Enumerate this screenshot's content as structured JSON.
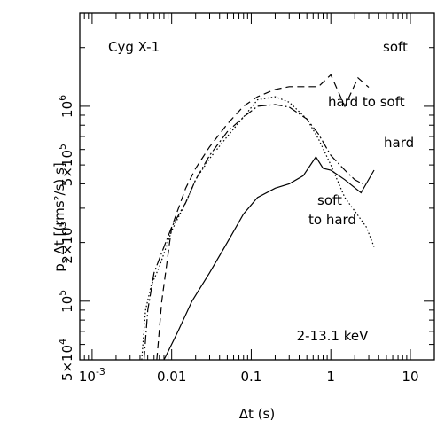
{
  "chart_data": {
    "type": "line",
    "title": "",
    "xlabel": "Δt (s)",
    "ylabel": "p",
    "ylabel_sub": "s",
    "ylabel_suffix": "Δt   [(rms²/s) s]",
    "xscale": "log",
    "yscale": "log",
    "xlim": [
      0.0007,
      20
    ],
    "ylim": [
      50000,
      3000000
    ],
    "annotations": {
      "source": "Cyg X-1",
      "energy": "2-13.1 keV"
    },
    "x_ticks": [
      {
        "value": 0.001,
        "base": "10",
        "exp": "-3"
      },
      {
        "value": 0.01,
        "base": "0.01",
        "exp": ""
      },
      {
        "value": 0.1,
        "base": "0.1",
        "exp": ""
      },
      {
        "value": 1,
        "base": "1",
        "exp": ""
      },
      {
        "value": 10,
        "base": "10",
        "exp": ""
      }
    ],
    "y_ticks": [
      {
        "value": 50000,
        "base": "5×10",
        "exp": "4"
      },
      {
        "value": 100000,
        "base": "10",
        "exp": "5"
      },
      {
        "value": 200000,
        "base": "2×10",
        "exp": "5"
      },
      {
        "value": 500000,
        "base": "5×10",
        "exp": "5"
      },
      {
        "value": 1000000,
        "base": "10",
        "exp": "6"
      }
    ],
    "series": [
      {
        "name": "soft",
        "dash": "8,5",
        "x": [
          0.0065,
          0.0075,
          0.01,
          0.015,
          0.02,
          0.03,
          0.05,
          0.08,
          0.12,
          0.2,
          0.3,
          0.5,
          0.7,
          1.0,
          1.5,
          2.2,
          3.0
        ],
        "y": [
          50000,
          100000,
          240000,
          380000,
          480000,
          620000,
          810000,
          1000000,
          1120000,
          1220000,
          1260000,
          1260000,
          1260000,
          1450000,
          1000000,
          1400000,
          1250000
        ]
      },
      {
        "name": "hard to soft",
        "dash": "10,3,2,3",
        "x": [
          0.0045,
          0.005,
          0.006,
          0.008,
          0.01,
          0.015,
          0.02,
          0.03,
          0.05,
          0.08,
          0.12,
          0.2,
          0.3,
          0.5,
          0.7,
          1.0,
          1.5,
          2.0,
          2.5
        ],
        "y": [
          50000,
          90000,
          140000,
          190000,
          240000,
          320000,
          420000,
          560000,
          740000,
          880000,
          1000000,
          1020000,
          990000,
          860000,
          720000,
          560000,
          470000,
          420000,
          400000
        ]
      },
      {
        "name": "soft to hard",
        "dash": "1.5,2.5",
        "x": [
          0.0042,
          0.0047,
          0.0055,
          0.007,
          0.01,
          0.015,
          0.02,
          0.03,
          0.05,
          0.08,
          0.12,
          0.2,
          0.3,
          0.5,
          0.7,
          1.0,
          1.5,
          2.0,
          2.8,
          3.5
        ],
        "y": [
          50000,
          90000,
          120000,
          150000,
          230000,
          320000,
          420000,
          540000,
          700000,
          880000,
          1080000,
          1120000,
          1050000,
          860000,
          680000,
          500000,
          340000,
          290000,
          240000,
          190000
        ]
      },
      {
        "name": "hard",
        "dash": "",
        "x": [
          0.008,
          0.012,
          0.018,
          0.03,
          0.05,
          0.08,
          0.12,
          0.2,
          0.3,
          0.45,
          0.65,
          0.8,
          1.0,
          1.5,
          2.4,
          3.5
        ],
        "y": [
          50000,
          70000,
          100000,
          140000,
          200000,
          280000,
          340000,
          380000,
          400000,
          440000,
          550000,
          480000,
          470000,
          420000,
          360000,
          470000
        ]
      }
    ],
    "series_labels": [
      {
        "text": "soft",
        "series": "soft"
      },
      {
        "text": "hard to soft",
        "series": "hard to soft"
      },
      {
        "text": "hard",
        "series": "hard"
      },
      {
        "text": "soft",
        "series": "soft to hard"
      },
      {
        "text": "to hard",
        "series": "soft to hard"
      }
    ]
  }
}
